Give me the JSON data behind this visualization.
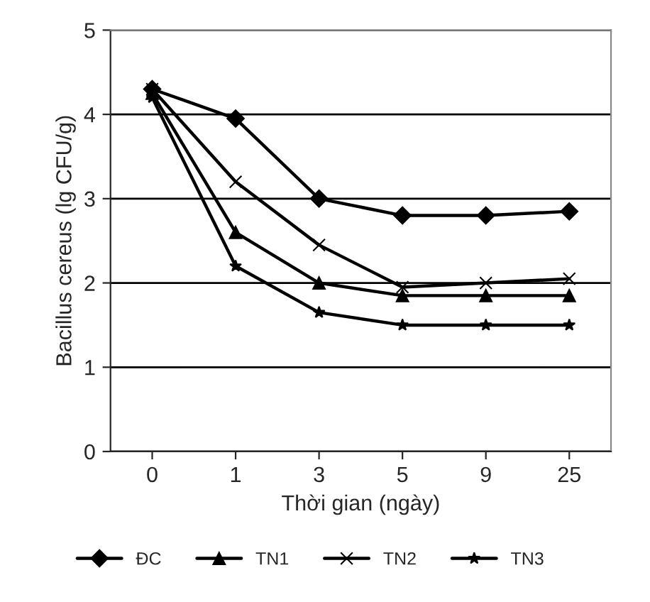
{
  "chart_data": {
    "type": "line",
    "xlabel": "Thời gian (ngày)",
    "ylabel": "Bacillus cereus (lg CFU/g)",
    "categories": [
      "0",
      "1",
      "3",
      "5",
      "9",
      "25"
    ],
    "ylim": [
      0,
      5
    ],
    "yticks": [
      0,
      1,
      2,
      3,
      4,
      5
    ],
    "grid": "y",
    "legend": "bottom",
    "line_style": "solid",
    "series": [
      {
        "name": "ĐC",
        "color": "#000000",
        "marker": "diamond",
        "values": [
          4.3,
          3.95,
          3.0,
          2.8,
          2.8,
          2.85
        ]
      },
      {
        "name": "TN1",
        "color": "#000000",
        "marker": "triangle",
        "values": [
          4.25,
          2.6,
          2.0,
          1.85,
          1.85,
          1.85
        ]
      },
      {
        "name": "TN2",
        "color": "#000000",
        "marker": "cross",
        "values": [
          4.3,
          3.2,
          2.45,
          1.95,
          2.0,
          2.05
        ]
      },
      {
        "name": "TN3",
        "color": "#000000",
        "marker": "star",
        "values": [
          4.2,
          2.2,
          1.65,
          1.5,
          1.5,
          1.5
        ]
      }
    ]
  }
}
